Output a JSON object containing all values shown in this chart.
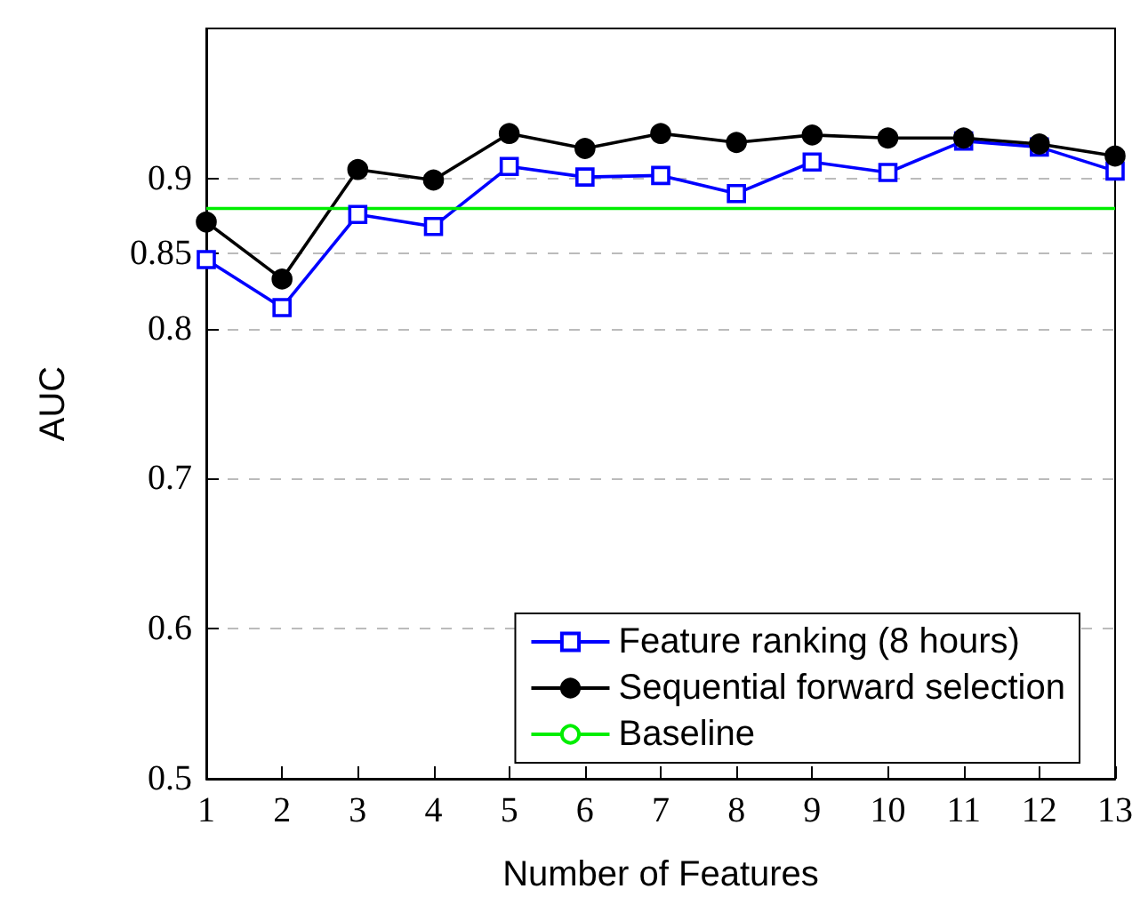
{
  "chart_data": {
    "type": "line",
    "xlabel": "Number of Features",
    "ylabel": "AUC",
    "x": [
      1,
      2,
      3,
      4,
      5,
      6,
      7,
      8,
      9,
      10,
      11,
      12,
      13
    ],
    "series": [
      {
        "name": "Feature ranking (8 hours)",
        "color": "#0000ff",
        "marker": "square",
        "values": [
          0.846,
          0.814,
          0.876,
          0.868,
          0.908,
          0.901,
          0.902,
          0.89,
          0.911,
          0.904,
          0.925,
          0.921,
          0.905
        ]
      },
      {
        "name": "Sequential forward selection",
        "color": "#000000",
        "marker": "circle",
        "values": [
          0.871,
          0.833,
          0.906,
          0.899,
          0.93,
          0.92,
          0.93,
          0.924,
          0.929,
          0.927,
          0.927,
          0.923,
          0.915
        ]
      },
      {
        "name": "Baseline",
        "color": "#00ee00",
        "marker": "none",
        "x": [
          1,
          13
        ],
        "values": [
          0.88,
          0.88
        ]
      }
    ],
    "xlim": [
      1,
      13
    ],
    "xticks": [
      1,
      2,
      3,
      4,
      5,
      6,
      7,
      8,
      9,
      10,
      11,
      12,
      13
    ],
    "ylim": [
      0.5,
      1.0
    ],
    "yticks": [
      0.5,
      0.6,
      0.7,
      0.8,
      0.85,
      0.9
    ],
    "grid": "y",
    "legend": "bottom right"
  }
}
